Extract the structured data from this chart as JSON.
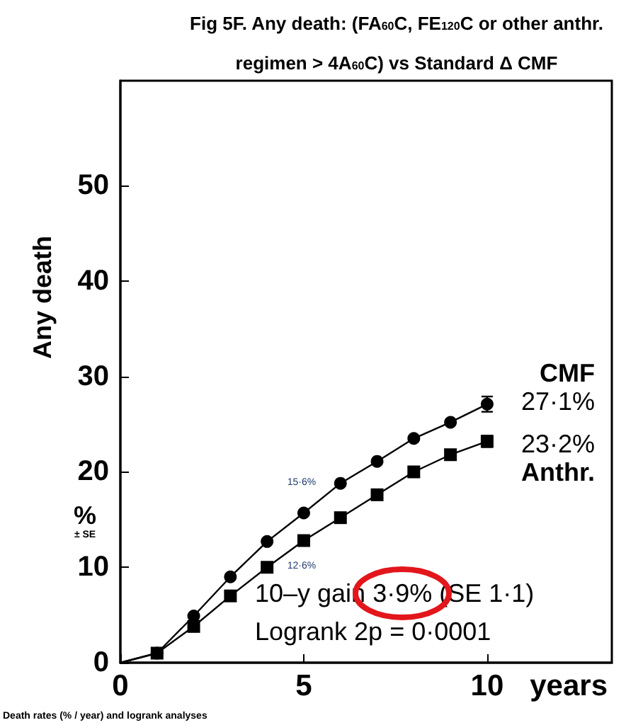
{
  "chart_data": {
    "type": "line",
    "title": "Fig 5F. Any death: (FA$_{60}$C, FE$_{120}$C or other anthr. regimen > 4A$_{60}$C) vs Standard Δ CMF",
    "ylabel": "Any death",
    "xlabel": "years",
    "x": [
      0,
      1,
      2,
      3,
      4,
      5,
      6,
      7,
      8,
      9,
      10
    ],
    "series": [
      {
        "name": "CMF",
        "color": "#000000",
        "marker": "circle",
        "values": [
          0,
          1.0,
          4.9,
          9.0,
          12.7,
          15.7,
          18.8,
          21.1,
          23.5,
          25.2,
          27.1
        ],
        "errors": [
          null,
          null,
          null,
          null,
          null,
          null,
          null,
          null,
          null,
          null,
          0.8
        ],
        "value_labels": [
          null,
          null,
          null,
          null,
          null,
          null,
          null,
          null,
          null,
          null,
          "27·1%"
        ]
      },
      {
        "name": "Anthr.",
        "color": "#000000",
        "marker": "square",
        "values": [
          0,
          1.0,
          3.8,
          7.0,
          10.0,
          12.8,
          15.2,
          17.6,
          20.0,
          21.8,
          23.2
        ],
        "errors": [
          null,
          null,
          null,
          null,
          null,
          null,
          null,
          null,
          null,
          null,
          0.6
        ],
        "value_labels": [
          null,
          null,
          null,
          null,
          null,
          null,
          null,
          null,
          null,
          null,
          "23·2%"
        ]
      }
    ],
    "xlim": [
      0,
      13.4
    ],
    "xticks": [
      0,
      5,
      10
    ],
    "ylim": [
      0,
      61
    ],
    "yticks": [
      0,
      10,
      20,
      30,
      40,
      50
    ],
    "grid": false,
    "annotations": [
      "15·6%",
      "12·6%",
      "%",
      "± SE",
      "10–y gain 3·9% (SE 1·1)",
      "Logrank 2p = 0·0001",
      "Death rates (% / year) and logrank analyses"
    ]
  }
}
